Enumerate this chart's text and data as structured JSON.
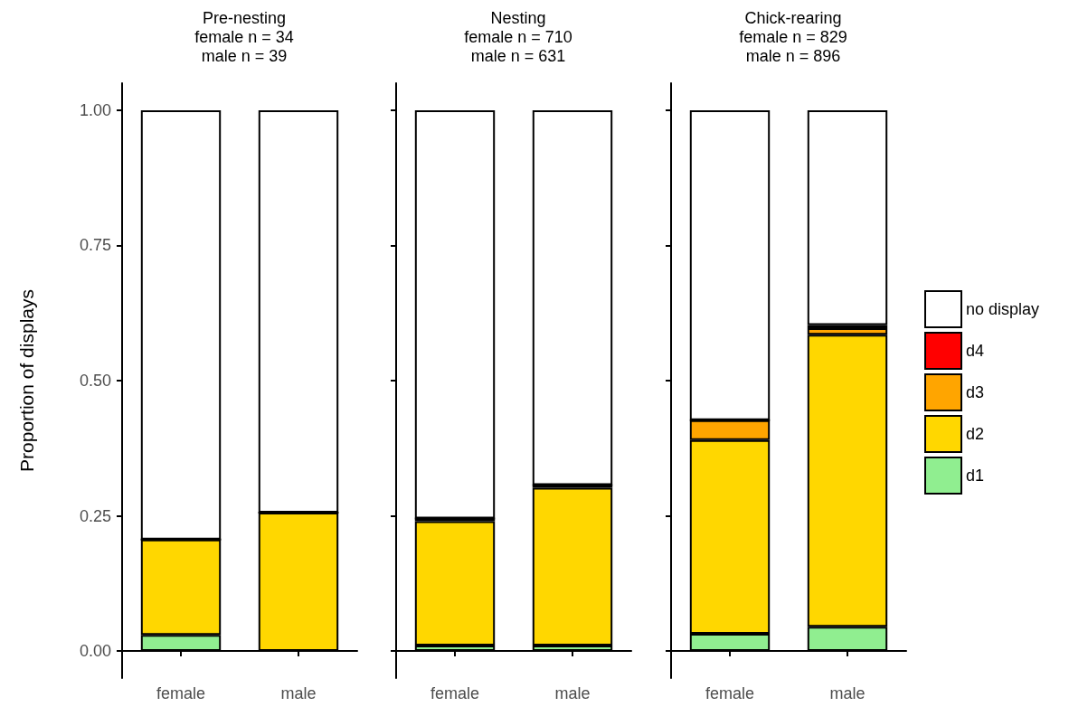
{
  "chart_data": [
    {
      "type": "bar",
      "title": "Pre-nesting\nfemale n = 34\nmale n = 39",
      "ylabel": "Proportion of displays",
      "categories": [
        "female",
        "male"
      ],
      "stacked": true,
      "ylim": [
        -0.05,
        1.05
      ],
      "yticks": [
        {
          "value": 0,
          "label": "0.00"
        },
        {
          "value": 0.25,
          "label": "0.25"
        },
        {
          "value": 0.5,
          "label": "0.50"
        },
        {
          "value": 0.75,
          "label": "0.75"
        },
        {
          "value": 1,
          "label": "1.00"
        }
      ],
      "series": [
        {
          "color": "#90ee90",
          "values": [
            0.03,
            0
          ]
        },
        {
          "color": "#ffd700",
          "values": [
            0.176,
            0.256
          ]
        },
        {
          "color": "#ffa500",
          "values": [
            0,
            0
          ]
        },
        {
          "color": "#ff0000",
          "values": [
            0,
            0
          ]
        },
        {
          "color": "#ffffff",
          "values": [
            0.794,
            0.744
          ]
        }
      ],
      "legend": false
    },
    {
      "type": "bar",
      "title": "Nesting\nfemale n = 710\nmale n = 631",
      "categories": [
        "female",
        "male"
      ],
      "stacked": true,
      "ylim": [
        -0.05,
        1.05
      ],
      "yticks": [
        {
          "value": 0,
          "label": null
        },
        {
          "value": 0.25,
          "label": null
        },
        {
          "value": 0.5,
          "label": null
        },
        {
          "value": 0.75,
          "label": null
        },
        {
          "value": 1,
          "label": null
        }
      ],
      "tick_labels": "x",
      "series": [
        {
          "color": "#90ee90",
          "values": [
            0.01,
            0.01
          ]
        },
        {
          "color": "#ffd700",
          "values": [
            0.23,
            0.292
          ]
        },
        {
          "color": "#ffa500",
          "values": [
            0.005,
            0.005
          ]
        },
        {
          "color": "#ff0000",
          "values": [
            0,
            0
          ]
        },
        {
          "color": "#ffffff",
          "values": [
            0.755,
            0.693
          ]
        }
      ],
      "legend": false
    },
    {
      "type": "bar",
      "title": "Chick-rearing\nfemale n = 829\nmale n = 896",
      "categories": [
        "female",
        "male"
      ],
      "stacked": true,
      "ylim": [
        -0.05,
        1.05
      ],
      "yticks": [
        {
          "value": 0,
          "label": null
        },
        {
          "value": 0.25,
          "label": null
        },
        {
          "value": 0.5,
          "label": null
        },
        {
          "value": 0.75,
          "label": null
        },
        {
          "value": 1,
          "label": null
        }
      ],
      "tick_labels": "x",
      "series": [
        {
          "name": "d1",
          "color": "#90ee90",
          "values": [
            0.032,
            0.045
          ]
        },
        {
          "name": "d2",
          "color": "#ffd700",
          "values": [
            0.358,
            0.54
          ]
        },
        {
          "name": "d3",
          "color": "#ffa500",
          "values": [
            0.037,
            0.012
          ]
        },
        {
          "name": "d4",
          "color": "#ff0000",
          "values": [
            0,
            0.006
          ]
        },
        {
          "name": "no display",
          "color": "#ffffff",
          "values": [
            0.573,
            0.397
          ]
        }
      ],
      "legend": "right"
    }
  ]
}
